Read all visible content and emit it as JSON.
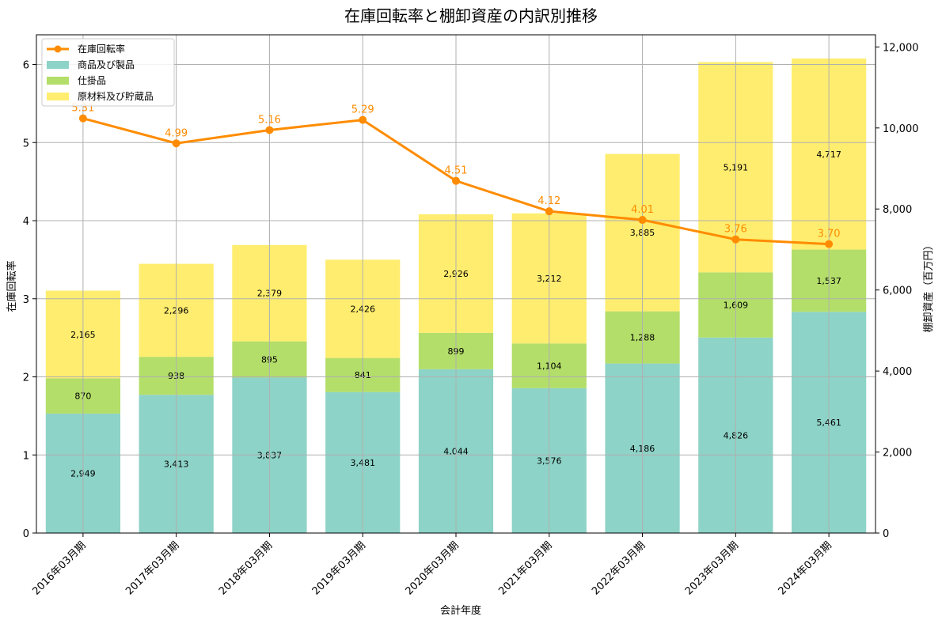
{
  "chart_data": {
    "type": "bar",
    "title": "在庫回転率と棚卸資産の内訳別推移",
    "xlabel": "会計年度",
    "ylabel_left": "在庫回転率",
    "ylabel_right": "棚卸資産（百万円）",
    "categories": [
      "2016年03月期",
      "2017年03月期",
      "2018年03月期",
      "2019年03月期",
      "2020年03月期",
      "2021年03月期",
      "2022年03月期",
      "2023年03月期",
      "2024年03月期"
    ],
    "series": [
      {
        "name": "商品及び製品",
        "type": "bar",
        "axis": "right",
        "color": "#8dd3c7",
        "values": [
          2949,
          3413,
          3837,
          3481,
          4044,
          3576,
          4186,
          4826,
          5461
        ],
        "labels": [
          "2,949",
          "3,413",
          "3,837",
          "3,481",
          "4,044",
          "3,576",
          "4,186",
          "4,826",
          "5,461"
        ]
      },
      {
        "name": "仕掛品",
        "type": "bar",
        "axis": "right",
        "color": "#b3de69",
        "values": [
          870,
          938,
          895,
          841,
          899,
          1104,
          1288,
          1609,
          1537
        ],
        "labels": [
          "870",
          "938",
          "895",
          "841",
          "899",
          "1,104",
          "1,288",
          "1,609",
          "1,537"
        ]
      },
      {
        "name": "原材料及び貯蔵品",
        "type": "bar",
        "axis": "right",
        "color": "#ffed6f",
        "values": [
          2165,
          2296,
          2379,
          2426,
          2926,
          3212,
          3885,
          5191,
          4717
        ],
        "labels": [
          "2,165",
          "2,296",
          "2,379",
          "2,426",
          "2,926",
          "3,212",
          "3,885",
          "5,191",
          "4,717"
        ]
      },
      {
        "name": "在庫回転率",
        "type": "line",
        "axis": "left",
        "color": "#ff8c00",
        "values": [
          5.31,
          4.99,
          5.16,
          5.29,
          4.51,
          4.12,
          4.01,
          3.76,
          3.7
        ],
        "labels": [
          "5.31",
          "4.99",
          "5.16",
          "5.29",
          "4.51",
          "4.12",
          "4.01",
          "3.76",
          "3.70"
        ]
      }
    ],
    "ylim_left": [
      0,
      6.38
    ],
    "ylim_right": [
      0,
      12300
    ],
    "yticks_left": [
      "0",
      "1",
      "2",
      "3",
      "4",
      "5",
      "6"
    ],
    "yticks_left_values": [
      0,
      1,
      2,
      3,
      4,
      5,
      6
    ],
    "yticks_right": [
      "0",
      "2,000",
      "4,000",
      "6,000",
      "8,000",
      "10,000",
      "12,000"
    ],
    "yticks_right_values": [
      0,
      2000,
      4000,
      6000,
      8000,
      10000,
      12000
    ],
    "grid": true,
    "legend_position": "top-left"
  }
}
